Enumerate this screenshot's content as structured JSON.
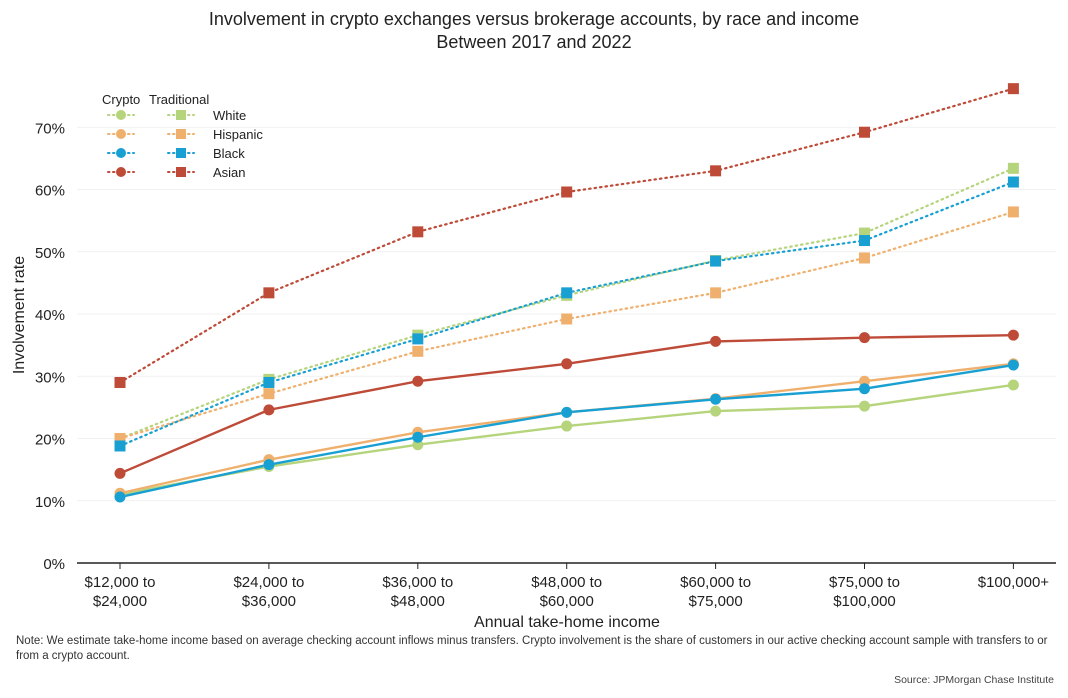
{
  "chart_data": {
    "type": "line",
    "title": "Involvement in crypto exchanges versus brokerage accounts, by race and income",
    "subtitle": "Between 2017 and 2022",
    "xlabel": "Annual take-home income",
    "ylabel": "Involvement rate",
    "categories": [
      [
        "$12,000 to",
        "$24,000"
      ],
      [
        "$24,000 to",
        "$36,000"
      ],
      [
        "$36,000 to",
        "$48,000"
      ],
      [
        "$48,000 to",
        "$60,000"
      ],
      [
        "$60,000 to",
        "$75,000"
      ],
      [
        "$75,000 to",
        "$100,000"
      ],
      [
        "$100,000+"
      ]
    ],
    "ylim": [
      0,
      75
    ],
    "yticks": [
      0,
      10,
      20,
      30,
      40,
      50,
      60,
      70
    ],
    "ytick_labels": [
      "0%",
      "10%",
      "20%",
      "30%",
      "40%",
      "50%",
      "60%",
      "70%"
    ],
    "legend": {
      "placement": "top-left",
      "col_headers": [
        "Crypto",
        "Traditional"
      ]
    },
    "series": [
      {
        "name": "White",
        "color": "#b5d47c",
        "crypto": [
          11.0,
          15.5,
          19.0,
          22.0,
          24.4,
          25.2,
          28.6
        ],
        "traditional": [
          20.0,
          29.5,
          36.6,
          43.0,
          48.6,
          53.0,
          63.4
        ]
      },
      {
        "name": "Hispanic",
        "color": "#efb06e",
        "crypto": [
          11.2,
          16.6,
          21.0,
          24.2,
          26.4,
          29.2,
          32.0
        ],
        "traditional": [
          20.0,
          27.2,
          34.0,
          39.2,
          43.4,
          49.0,
          56.4
        ]
      },
      {
        "name": "Black",
        "color": "#19a0d3",
        "crypto": [
          10.6,
          15.8,
          20.2,
          24.2,
          26.3,
          28.0,
          31.8
        ],
        "traditional": [
          18.8,
          29.0,
          36.0,
          43.4,
          48.5,
          51.8,
          61.2
        ]
      },
      {
        "name": "Asian",
        "color": "#be4a38",
        "crypto": [
          14.4,
          24.6,
          29.2,
          32.0,
          35.6,
          36.2,
          36.6
        ],
        "traditional": [
          29.0,
          43.4,
          53.2,
          59.6,
          63.0,
          69.2,
          76.2
        ]
      }
    ]
  },
  "note": "Note: We estimate take-home income based on average checking account inflows minus transfers. Crypto involvement is the share of customers in our active checking account sample with transfers to or from a crypto account.",
  "source": "Source: JPMorgan Chase Institute"
}
